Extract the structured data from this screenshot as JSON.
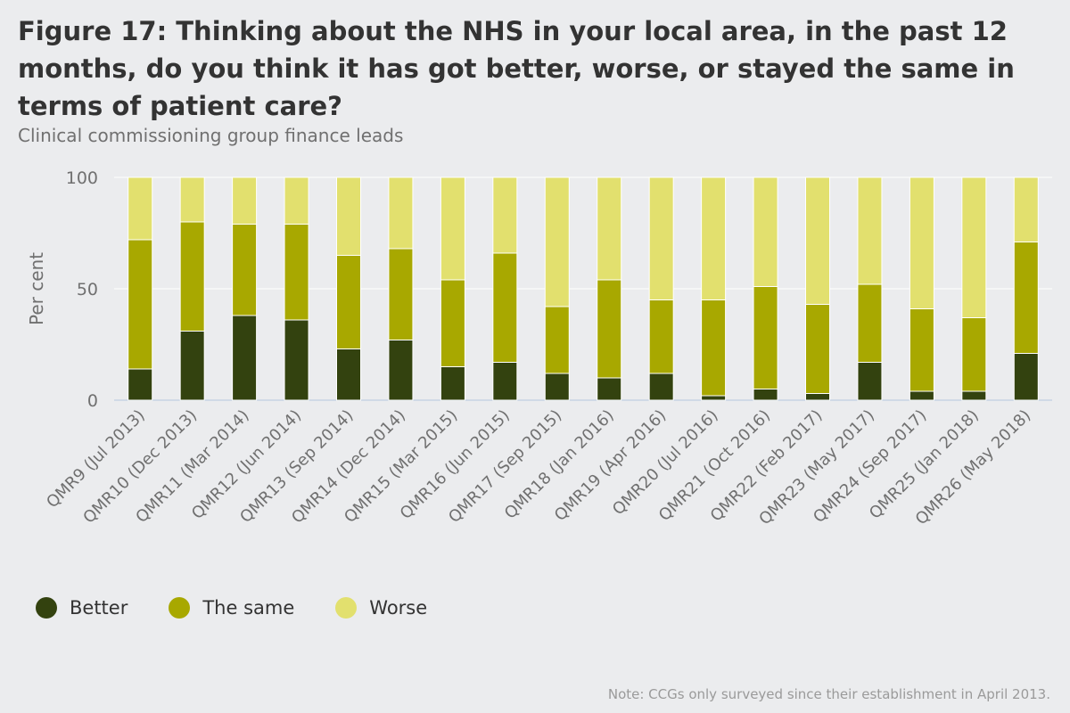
{
  "title": "Figure 17: Thinking about the NHS in your local area, in the past 12 months, do you think it has got better, worse, or stayed the same in terms of patient care?",
  "subtitle": "Clinical commissioning group finance leads",
  "note": "Note: CCGs only surveyed since their establishment in April 2013.",
  "colors": {
    "better": "#33420f",
    "same": "#a8a800",
    "worse": "#e2e06e"
  },
  "legend": [
    {
      "label": "Better",
      "color": "#33420f"
    },
    {
      "label": "The same",
      "color": "#a8a800"
    },
    {
      "label": "Worse",
      "color": "#e2e06e"
    }
  ],
  "chart_data": {
    "type": "bar",
    "stacked": true,
    "title": "Figure 17: Thinking about the NHS in your local area, in the past 12 months, do you think it has got better, worse, or stayed the same in terms of patient care?",
    "subtitle": "Clinical commissioning group finance leads",
    "xlabel": "",
    "ylabel": "Per cent",
    "ylim": [
      0,
      100
    ],
    "yticks": [
      0,
      50,
      100
    ],
    "grid": true,
    "legend_position": "bottom-left",
    "categories": [
      "QMR9 (Jul 2013)",
      "QMR10 (Dec 2013)",
      "QMR11 (Mar 2014)",
      "QMR12 (Jun 2014)",
      "QMR13 (Sep 2014)",
      "QMR14 (Dec 2014)",
      "QMR15 (Mar 2015)",
      "QMR16 (Jun 2015)",
      "QMR17 (Sep 2015)",
      "QMR18 (Jan 2016)",
      "QMR19 (Apr 2016)",
      "QMR20 (Jul 2016)",
      "QMR21 (Oct 2016)",
      "QMR22 (Feb 2017)",
      "QMR23 (May 2017)",
      "QMR24 (Sep 2017)",
      "QMR25 (Jan 2018)",
      "QMR26 (May 2018)"
    ],
    "series": [
      {
        "name": "Better",
        "values": [
          14,
          31,
          38,
          36,
          23,
          27,
          15,
          17,
          12,
          10,
          12,
          2,
          5,
          3,
          17,
          4,
          4,
          21
        ]
      },
      {
        "name": "The same",
        "values": [
          58,
          49,
          41,
          43,
          42,
          41,
          39,
          49,
          30,
          44,
          33,
          43,
          46,
          40,
          35,
          37,
          33,
          50
        ]
      },
      {
        "name": "Worse",
        "values": [
          28,
          20,
          21,
          21,
          35,
          32,
          46,
          34,
          58,
          46,
          55,
          55,
          49,
          57,
          48,
          59,
          63,
          29
        ]
      }
    ]
  }
}
